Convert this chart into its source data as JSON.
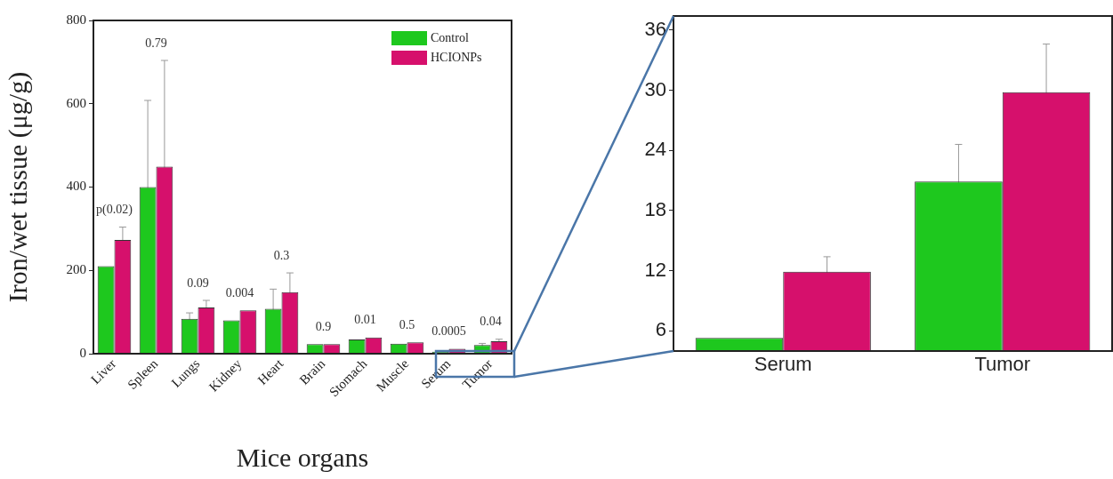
{
  "chart_data": [
    {
      "type": "bar",
      "xlabel": "Mice organs",
      "ylabel": "Iron/wet tissue (μg/g)",
      "categories": [
        "Liver",
        "Spleen",
        "Lungs",
        "Kidney",
        "Heart",
        "Brain",
        "Stomach",
        "Muscle",
        "Serum",
        "Tumor"
      ],
      "series": [
        {
          "name": "Control",
          "color": "#1ec81e",
          "values": [
            210,
            400,
            84,
            80,
            108,
            23,
            34,
            24,
            5,
            21
          ],
          "errors": [
            null,
            208,
            14,
            null,
            47,
            null,
            null,
            null,
            null,
            3.7
          ]
        },
        {
          "name": "HCIONPs",
          "color": "#d6106c",
          "values": [
            273,
            449,
            111,
            104,
            148,
            23,
            39,
            27,
            12,
            30
          ],
          "errors": [
            31,
            255,
            17,
            null,
            46,
            null,
            null,
            null,
            null,
            4.8
          ]
        }
      ],
      "ylim": [
        0,
        800
      ],
      "yticks": [
        0,
        200,
        400,
        600,
        800
      ],
      "grid": false,
      "legend": "top right",
      "annotations": [
        "p(0.02)",
        "0.79",
        "0.09",
        "0.004",
        "0.3",
        "0.9",
        "0.01",
        "0.5",
        "0.0005",
        "0.04"
      ]
    },
    {
      "type": "bar",
      "categories": [
        "Serum",
        "Tumor"
      ],
      "series": [
        {
          "color": "#1ec81e",
          "values": [
            5.3,
            20.9
          ],
          "errors": [
            null,
            3.7
          ]
        },
        {
          "color": "#d6106c",
          "values": [
            11.9,
            29.8
          ],
          "errors": [
            1.5,
            4.8
          ]
        }
      ],
      "ylim": [
        4,
        37.4
      ],
      "yticks": [
        6,
        12,
        18,
        24,
        30,
        36
      ],
      "grid": false,
      "legend": false
    }
  ]
}
